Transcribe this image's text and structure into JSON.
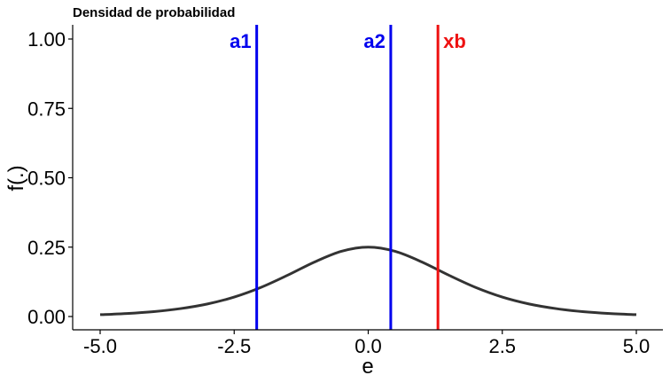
{
  "chart_data": {
    "type": "line",
    "title": "Densidad de probabilidad",
    "xlabel": "e",
    "ylabel": "f(.)",
    "xlim": [
      -5,
      5
    ],
    "ylim": [
      0,
      1
    ],
    "x_ticks": [
      -5.0,
      -2.5,
      0.0,
      2.5,
      5.0
    ],
    "x_tick_labels": [
      "-5.0",
      "-2.5",
      "0.0",
      "2.5",
      "5.0"
    ],
    "y_ticks": [
      0.0,
      0.25,
      0.5,
      0.75,
      1.0
    ],
    "y_tick_labels": [
      "0.00",
      "0.25",
      "0.50",
      "0.75",
      "1.00"
    ],
    "grid": false,
    "series": [
      {
        "color": "#333333",
        "x": [
          -5.0,
          -4.5,
          -4.0,
          -3.5,
          -3.0,
          -2.5,
          -2.0,
          -1.5,
          -1.0,
          -0.5,
          0.0,
          0.5,
          1.0,
          1.5,
          2.0,
          2.5,
          3.0,
          3.5,
          4.0,
          4.5,
          5.0
        ],
        "y": [
          0.0066,
          0.0109,
          0.0177,
          0.0286,
          0.0452,
          0.0701,
          0.105,
          0.1491,
          0.1966,
          0.235,
          0.25,
          0.235,
          0.1966,
          0.1491,
          0.105,
          0.0701,
          0.0452,
          0.0286,
          0.0177,
          0.0109,
          0.0066
        ]
      }
    ],
    "vlines": [
      {
        "label": "a1",
        "x": -2.08,
        "color": "#0000ee",
        "label_side": "left"
      },
      {
        "label": "a2",
        "x": 0.42,
        "color": "#0000ee",
        "label_side": "left"
      },
      {
        "label": "xb",
        "x": 1.3,
        "color": "#ee1111",
        "label_side": "right"
      }
    ]
  }
}
